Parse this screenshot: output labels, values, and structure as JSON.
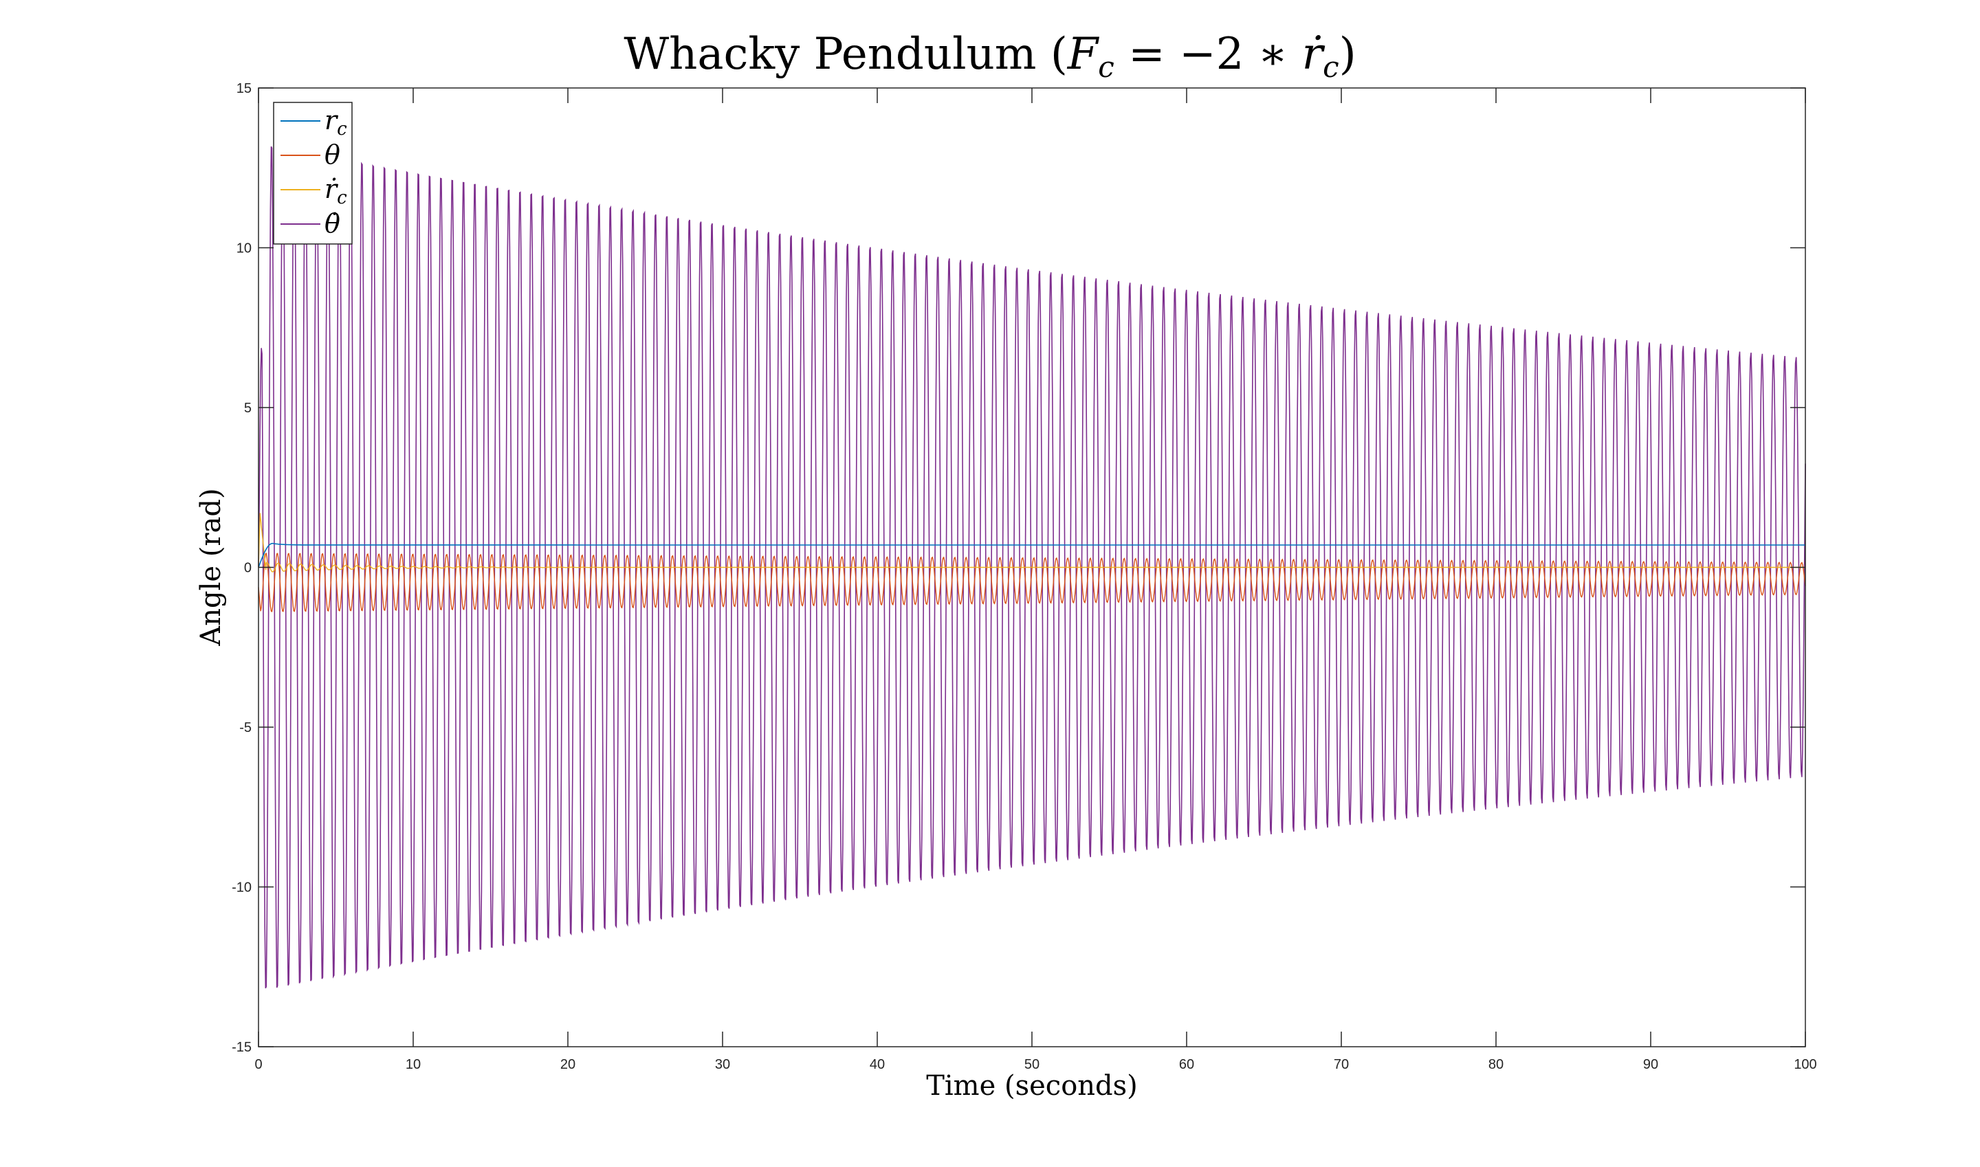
{
  "chart_data": {
    "type": "line",
    "title": "Whacky Pendulum (F_c = −2 * ṙ_c)",
    "title_parts": {
      "main": "Whacky Pendulum (",
      "F": "F",
      "c1": "c",
      "eq": " = −2 ∗ ",
      "r": "ṙ",
      "c2": "c",
      "close": ")"
    },
    "xlabel": "Time (seconds)",
    "ylabel": "Angle (rad)",
    "xlim": [
      0,
      100
    ],
    "ylim": [
      -15,
      15
    ],
    "x_ticks": [
      0,
      10,
      20,
      30,
      40,
      50,
      60,
      70,
      80,
      90,
      100
    ],
    "y_ticks": [
      15,
      10,
      5,
      0,
      -5,
      -10,
      -15
    ],
    "grid": false,
    "box": true,
    "legend_position": "top-left",
    "series": [
      {
        "name": "r_c",
        "legend_main": "r",
        "legend_sub": "c",
        "color": "#0072BD",
        "description_values": {
          "initial": 0.0,
          "peak": 0.75,
          "peak_time": 0.9,
          "steady": 0.7
        }
      },
      {
        "name": "θ",
        "legend_main": "θ",
        "legend_sub": "",
        "color": "#D95319",
        "envelope_start": [
          -1.4,
          0.45
        ],
        "envelope_end": [
          -0.85,
          0.15
        ],
        "period_s": 0.73
      },
      {
        "name": "ṙ_c",
        "legend_main": "ṙ",
        "legend_sub": "c",
        "color": "#EDB120",
        "initial_peak": 1.7,
        "steady": 0.0
      },
      {
        "name": "θ̇",
        "legend_main": "θ̇",
        "legend_sub": "",
        "color": "#7E2F8E",
        "envelope_start": [
          -13.4,
          13.4
        ],
        "envelope_end": [
          -6.6,
          6.6
        ],
        "period_s": 0.73
      }
    ]
  }
}
